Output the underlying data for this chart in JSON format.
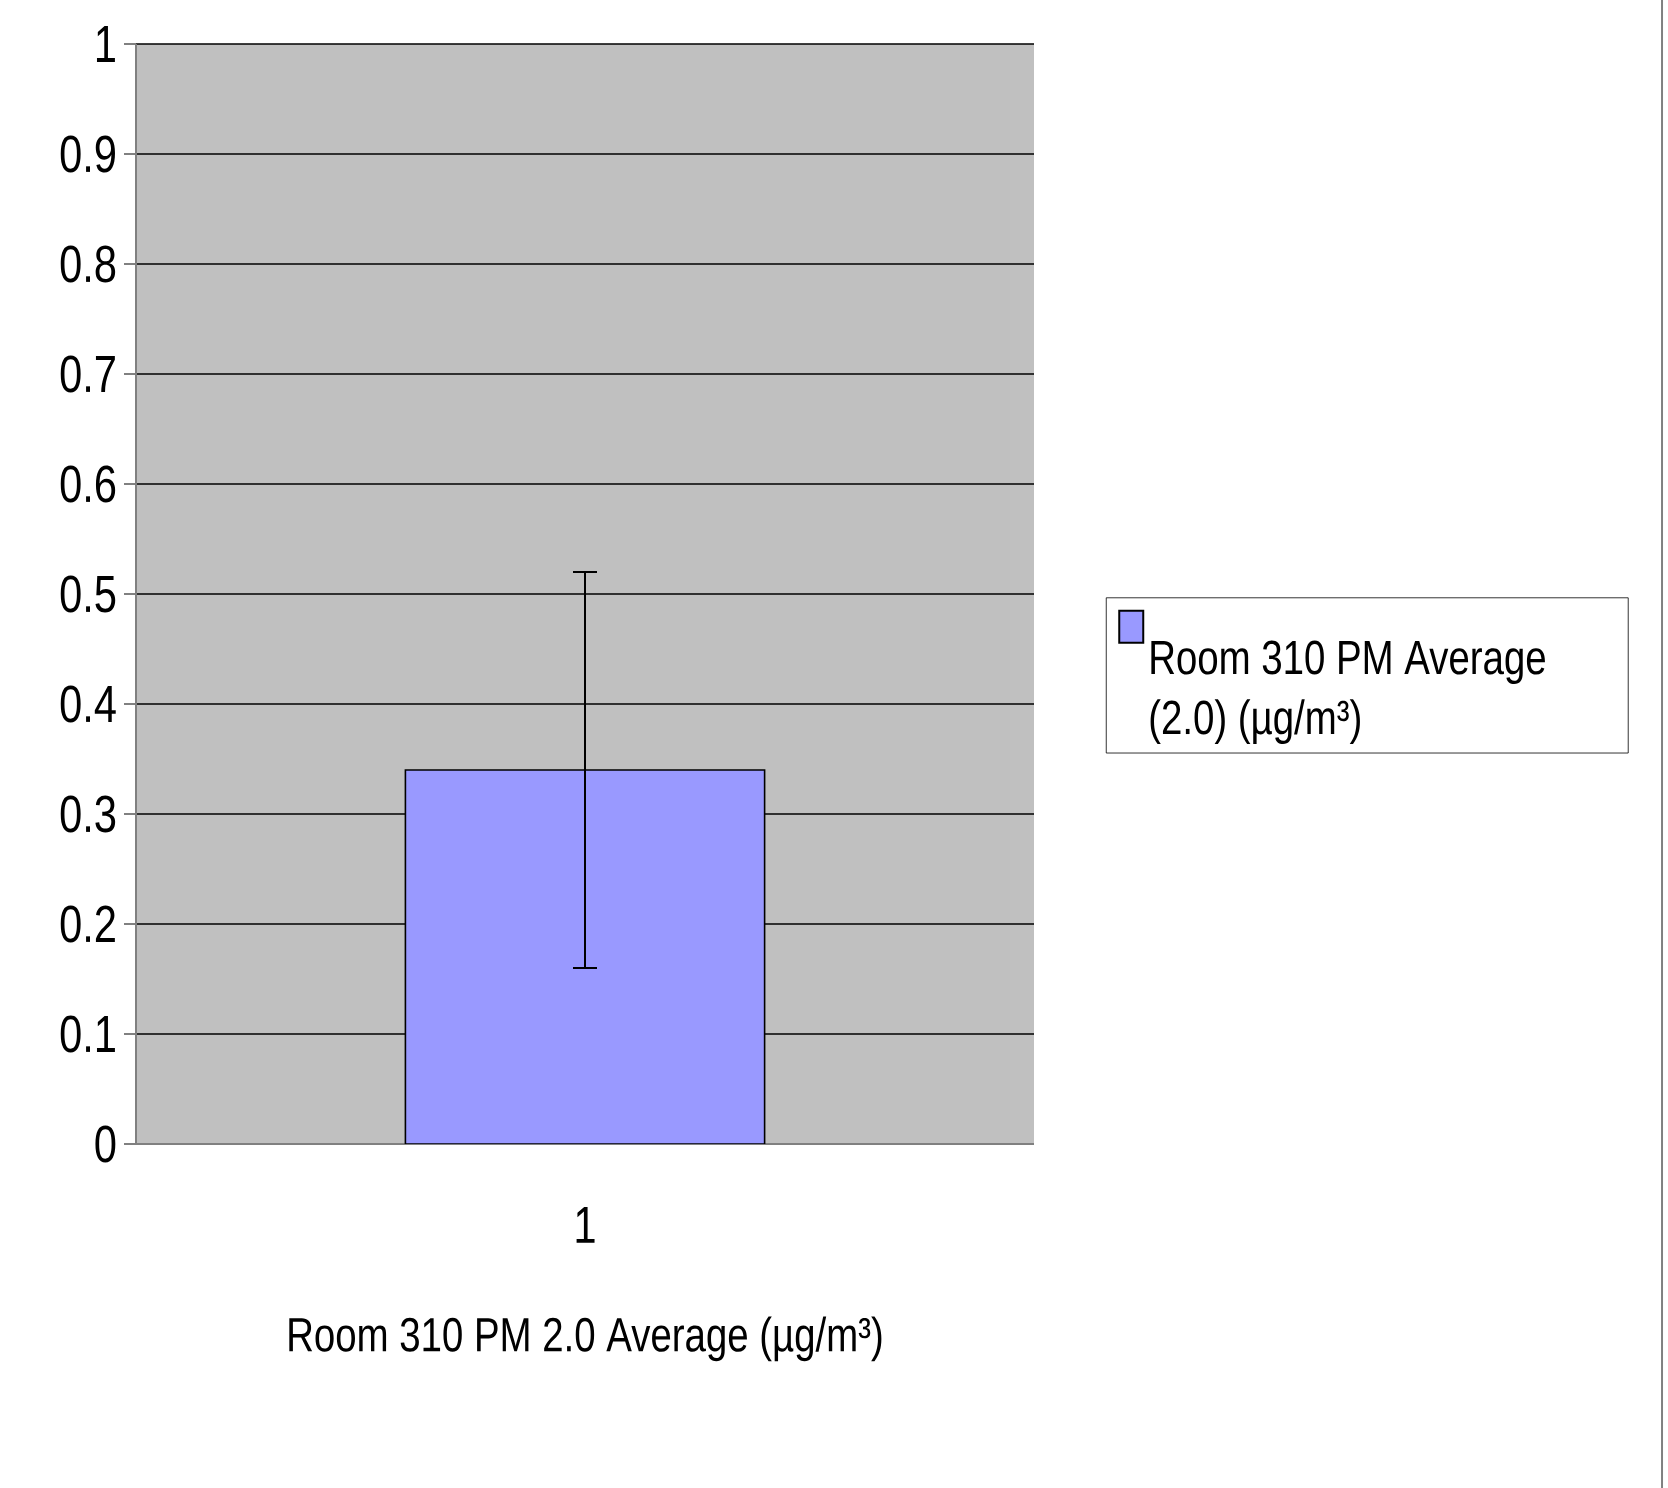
{
  "chart_data": {
    "type": "bar",
    "xlabel": "Room 310 PM 2.0 Average (µg/m³)",
    "categories": [
      "1"
    ],
    "series": [
      {
        "name": "Room 310 PM Average (2.0) (µg/m³)",
        "color": "#9999ff",
        "values": [
          0.34
        ],
        "errors": [
          0.18
        ]
      }
    ],
    "ylim": [
      0,
      1
    ],
    "yticks": [
      0,
      0.1,
      0.2,
      0.3,
      0.4,
      0.5,
      0.6,
      0.7,
      0.8,
      0.9,
      1
    ],
    "grid": "y",
    "legend": "right"
  }
}
